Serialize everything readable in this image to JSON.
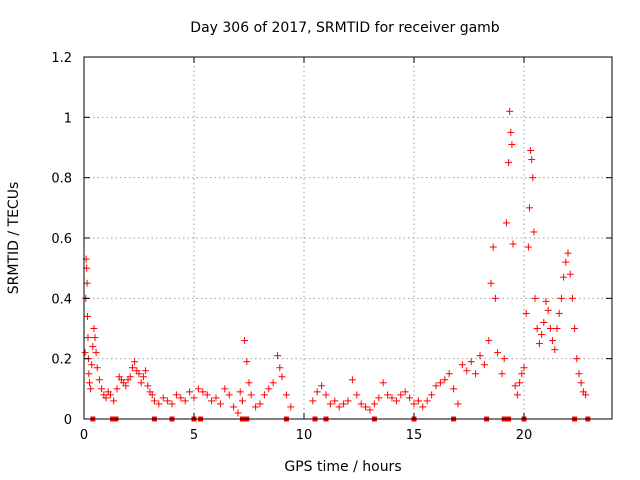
{
  "chart_data": {
    "type": "scatter",
    "title": "Day 306 of 2017, SRMTID for receiver gamb",
    "xlabel": "GPS time / hours",
    "ylabel": "SRMTID / TECUs",
    "xlim": [
      0,
      24
    ],
    "ylim": [
      0,
      1.2
    ],
    "x_ticks": [
      0,
      5,
      10,
      15,
      20
    ],
    "x_tick_labels": [
      "0",
      "5",
      "10",
      "15",
      "20"
    ],
    "y_ticks": [
      0,
      0.2,
      0.4,
      0.6,
      0.8,
      1.0,
      1.2
    ],
    "y_tick_labels": [
      "0",
      "0.2",
      "0.4",
      "0.6",
      "0.8",
      "1",
      "1.2"
    ],
    "grid": true,
    "marker": "plus",
    "series": [
      {
        "name": "SRMTID",
        "color": "#ff0000",
        "points": [
          [
            0.05,
            0.22
          ],
          [
            0.08,
            0.4
          ],
          [
            0.1,
            0.53
          ],
          [
            0.12,
            0.5
          ],
          [
            0.14,
            0.45
          ],
          [
            0.16,
            0.34
          ],
          [
            0.18,
            0.27
          ],
          [
            0.2,
            0.2
          ],
          [
            0.22,
            0.15
          ],
          [
            0.25,
            0.12
          ],
          [
            0.3,
            0.1
          ],
          [
            0.35,
            0.18
          ],
          [
            0.4,
            0.24
          ],
          [
            0.45,
            0.3
          ],
          [
            0.5,
            0.27
          ],
          [
            0.55,
            0.22
          ],
          [
            0.6,
            0.17
          ],
          [
            0.7,
            0.13
          ],
          [
            0.8,
            0.1
          ],
          [
            0.9,
            0.08
          ],
          [
            1.0,
            0.07
          ],
          [
            1.1,
            0.09
          ],
          [
            1.2,
            0.08
          ],
          [
            1.35,
            0.06
          ],
          [
            1.5,
            0.1
          ],
          [
            1.6,
            0.14
          ],
          [
            1.7,
            0.13
          ],
          [
            1.8,
            0.12
          ],
          [
            1.9,
            0.11
          ],
          [
            2.0,
            0.13
          ],
          [
            2.1,
            0.14
          ],
          [
            2.2,
            0.17
          ],
          [
            2.3,
            0.19
          ],
          [
            2.4,
            0.16
          ],
          [
            2.5,
            0.15
          ],
          [
            2.6,
            0.12
          ],
          [
            2.7,
            0.14
          ],
          [
            2.8,
            0.16
          ],
          [
            2.9,
            0.11
          ],
          [
            3.0,
            0.09
          ],
          [
            3.1,
            0.08
          ],
          [
            3.2,
            0.06
          ],
          [
            3.4,
            0.05
          ],
          [
            3.6,
            0.07
          ],
          [
            3.8,
            0.06
          ],
          [
            4.0,
            0.05
          ],
          [
            4.2,
            0.08
          ],
          [
            4.4,
            0.07
          ],
          [
            4.6,
            0.06
          ],
          [
            4.8,
            0.09
          ],
          [
            5.0,
            0.07
          ],
          [
            5.2,
            0.1
          ],
          [
            5.4,
            0.09
          ],
          [
            5.6,
            0.08
          ],
          [
            5.8,
            0.06
          ],
          [
            6.0,
            0.07
          ],
          [
            6.2,
            0.05
          ],
          [
            6.4,
            0.1
          ],
          [
            6.6,
            0.08
          ],
          [
            6.8,
            0.04
          ],
          [
            7.0,
            0.02
          ],
          [
            7.1,
            0.09
          ],
          [
            7.2,
            0.06
          ],
          [
            7.3,
            0.26
          ],
          [
            7.4,
            0.19
          ],
          [
            7.5,
            0.12
          ],
          [
            7.6,
            0.08
          ],
          [
            7.8,
            0.04
          ],
          [
            8.0,
            0.05
          ],
          [
            8.2,
            0.08
          ],
          [
            8.4,
            0.1
          ],
          [
            8.6,
            0.12
          ],
          [
            8.8,
            0.21
          ],
          [
            8.9,
            0.17
          ],
          [
            9.0,
            0.14
          ],
          [
            9.2,
            0.08
          ],
          [
            9.4,
            0.04
          ],
          [
            10.4,
            0.06
          ],
          [
            10.6,
            0.09
          ],
          [
            10.8,
            0.11
          ],
          [
            11.0,
            0.08
          ],
          [
            11.2,
            0.05
          ],
          [
            11.4,
            0.06
          ],
          [
            11.6,
            0.04
          ],
          [
            11.8,
            0.05
          ],
          [
            12.0,
            0.06
          ],
          [
            12.2,
            0.13
          ],
          [
            12.4,
            0.08
          ],
          [
            12.6,
            0.05
          ],
          [
            12.8,
            0.04
          ],
          [
            13.0,
            0.03
          ],
          [
            13.2,
            0.05
          ],
          [
            13.4,
            0.07
          ],
          [
            13.6,
            0.12
          ],
          [
            13.8,
            0.08
          ],
          [
            14.0,
            0.07
          ],
          [
            14.2,
            0.06
          ],
          [
            14.4,
            0.08
          ],
          [
            14.6,
            0.09
          ],
          [
            14.8,
            0.07
          ],
          [
            15.0,
            0.05
          ],
          [
            15.2,
            0.06
          ],
          [
            15.4,
            0.04
          ],
          [
            15.6,
            0.06
          ],
          [
            15.8,
            0.08
          ],
          [
            16.0,
            0.11
          ],
          [
            16.2,
            0.12
          ],
          [
            16.4,
            0.13
          ],
          [
            16.6,
            0.15
          ],
          [
            16.8,
            0.1
          ],
          [
            17.0,
            0.05
          ],
          [
            17.2,
            0.18
          ],
          [
            17.4,
            0.16
          ],
          [
            17.6,
            0.19
          ],
          [
            17.8,
            0.15
          ],
          [
            18.0,
            0.21
          ],
          [
            18.2,
            0.18
          ],
          [
            18.4,
            0.26
          ],
          [
            18.5,
            0.45
          ],
          [
            18.6,
            0.57
          ],
          [
            18.7,
            0.4
          ],
          [
            18.8,
            0.22
          ],
          [
            19.0,
            0.15
          ],
          [
            19.1,
            0.2
          ],
          [
            19.2,
            0.65
          ],
          [
            19.3,
            0.85
          ],
          [
            19.35,
            1.02
          ],
          [
            19.4,
            0.95
          ],
          [
            19.45,
            0.91
          ],
          [
            19.5,
            0.58
          ],
          [
            19.6,
            0.11
          ],
          [
            19.7,
            0.08
          ],
          [
            19.8,
            0.12
          ],
          [
            19.9,
            0.15
          ],
          [
            20.0,
            0.17
          ],
          [
            20.1,
            0.35
          ],
          [
            20.2,
            0.57
          ],
          [
            20.25,
            0.7
          ],
          [
            20.3,
            0.89
          ],
          [
            20.35,
            0.86
          ],
          [
            20.4,
            0.8
          ],
          [
            20.45,
            0.62
          ],
          [
            20.5,
            0.4
          ],
          [
            20.6,
            0.3
          ],
          [
            20.7,
            0.25
          ],
          [
            20.8,
            0.28
          ],
          [
            20.9,
            0.32
          ],
          [
            21.0,
            0.39
          ],
          [
            21.1,
            0.36
          ],
          [
            21.2,
            0.3
          ],
          [
            21.3,
            0.26
          ],
          [
            21.4,
            0.23
          ],
          [
            21.5,
            0.3
          ],
          [
            21.6,
            0.35
          ],
          [
            21.7,
            0.4
          ],
          [
            21.8,
            0.47
          ],
          [
            21.9,
            0.52
          ],
          [
            22.0,
            0.55
          ],
          [
            22.1,
            0.48
          ],
          [
            22.2,
            0.4
          ],
          [
            22.3,
            0.3
          ],
          [
            22.4,
            0.2
          ],
          [
            22.5,
            0.15
          ],
          [
            22.6,
            0.12
          ],
          [
            22.7,
            0.09
          ],
          [
            22.8,
            0.08
          ]
        ]
      }
    ],
    "baseline_markers": {
      "name": "zero-level markers",
      "y": 0,
      "x": [
        0.4,
        1.3,
        1.45,
        3.2,
        4.0,
        5.0,
        5.3,
        7.2,
        7.4,
        9.2,
        10.5,
        11.0,
        13.2,
        15.0,
        16.8,
        18.3,
        19.1,
        19.3,
        20.0,
        22.3,
        22.9
      ]
    }
  }
}
